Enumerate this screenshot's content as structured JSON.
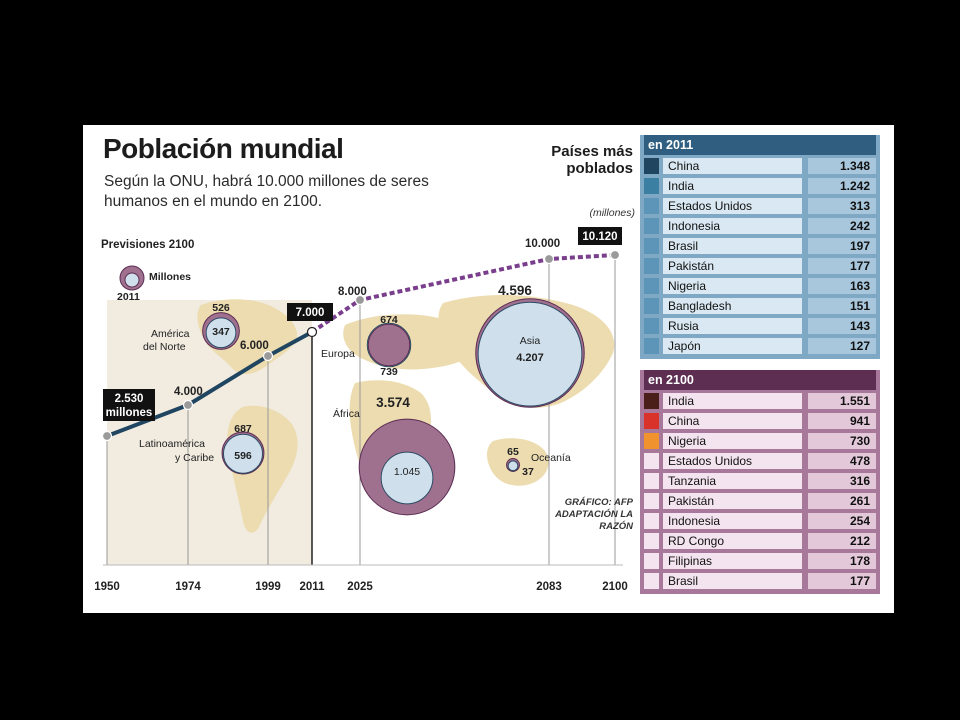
{
  "title": "Población mundial",
  "subtitle": "Según la ONU, habrá 10.000 millones de seres humanos en el mundo en 2100.",
  "legend": {
    "heading": "Previsiones 2100",
    "millones": "Millones",
    "year": "2011"
  },
  "paises_heading": "Países más poblados",
  "unit": "(millones)",
  "credit": "GRÁFICO: AFP ADAPTACIÓN LA RAZÓN",
  "colors": {
    "line_past": "#1f4560",
    "line_future": "#7a3f8c",
    "bubble_2100": "#a0708f",
    "bubble_2011": "#cfe0ec",
    "map": "#ecdcb0"
  },
  "chart_data": [
    {
      "type": "line",
      "x": [
        1950,
        1974,
        1999,
        2011,
        2025,
        2083,
        2100
      ],
      "y": [
        2530,
        4000,
        6000,
        7000,
        8000,
        10000,
        10120
      ],
      "y_labels": [
        "2.530 millones",
        "4.000",
        "6.000",
        "7.000",
        "8.000",
        "10.000",
        "10.120"
      ],
      "projection_from": 2011,
      "x_tick_labels": [
        "1950",
        "1974",
        "1999",
        "2011",
        "2025",
        "2083",
        "2100"
      ]
    },
    {
      "type": "scatter",
      "regions": [
        {
          "name": "América del Norte",
          "y2100": "526",
          "y2011": "347",
          "v2100": 526,
          "v2011": 347
        },
        {
          "name": "Latinoamérica y Caribe",
          "y2100": "687",
          "y2011": "596",
          "v2100": 687,
          "v2011": 596
        },
        {
          "name": "Europa",
          "y2100": "674",
          "y2011": "739",
          "v2100": 674,
          "v2011": 739
        },
        {
          "name": "África",
          "y2100": "3.574",
          "y2011": "1.045",
          "v2100": 3574,
          "v2011": 1045
        },
        {
          "name": "Asia",
          "y2100": "4.596",
          "y2011": "4.207",
          "v2100": 4596,
          "v2011": 4207
        },
        {
          "name": "Oceanía",
          "y2100": "65",
          "y2011": "37",
          "v2100": 65,
          "v2011": 37
        }
      ]
    },
    {
      "type": "table",
      "title": "en 2011",
      "rows": [
        {
          "country": "China",
          "value": "1.348",
          "color": "#1f4560"
        },
        {
          "country": "India",
          "value": "1.242",
          "color": "#3b7fa3"
        },
        {
          "country": "Estados Unidos",
          "value": "313",
          "color": "#5d95b8"
        },
        {
          "country": "Indonesia",
          "value": "242",
          "color": "#5d95b8"
        },
        {
          "country": "Brasil",
          "value": "197",
          "color": "#5d95b8"
        },
        {
          "country": "Pakistán",
          "value": "177",
          "color": "#5d95b8"
        },
        {
          "country": "Nigeria",
          "value": "163",
          "color": "#5d95b8"
        },
        {
          "country": "Bangladesh",
          "value": "151",
          "color": "#5d95b8"
        },
        {
          "country": "Rusia",
          "value": "143",
          "color": "#5d95b8"
        },
        {
          "country": "Japón",
          "value": "127",
          "color": "#5d95b8"
        }
      ]
    },
    {
      "type": "table",
      "title": "en 2100",
      "rows": [
        {
          "country": "India",
          "value": "1.551",
          "color": "#4a1f1a"
        },
        {
          "country": "China",
          "value": "941",
          "color": "#d9322b"
        },
        {
          "country": "Nigeria",
          "value": "730",
          "color": "#f0922e"
        },
        {
          "country": "Estados Unidos",
          "value": "478",
          "color": "#f4e4ef"
        },
        {
          "country": "Tanzania",
          "value": "316",
          "color": "#f4e4ef"
        },
        {
          "country": "Pakistán",
          "value": "261",
          "color": "#f4e4ef"
        },
        {
          "country": "Indonesia",
          "value": "254",
          "color": "#f4e4ef"
        },
        {
          "country": "RD Congo",
          "value": "212",
          "color": "#f4e4ef"
        },
        {
          "country": "Filipinas",
          "value": "178",
          "color": "#f4e4ef"
        },
        {
          "country": "Brasil",
          "value": "177",
          "color": "#f4e4ef"
        }
      ]
    }
  ]
}
